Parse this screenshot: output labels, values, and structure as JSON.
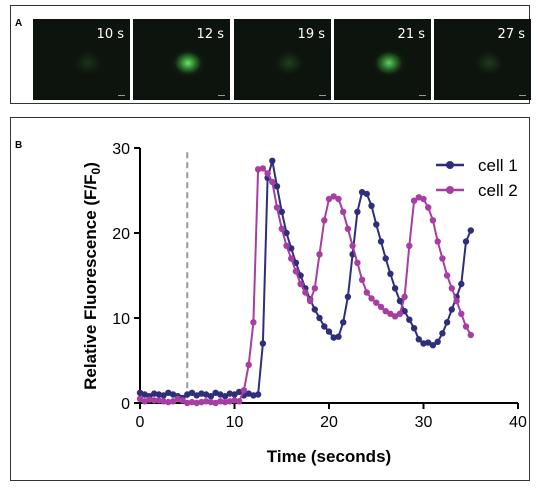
{
  "panel_a": {
    "label": "A",
    "frames": [
      {
        "time": "10 s",
        "intensity": 0.15
      },
      {
        "time": "12 s",
        "intensity": 0.95
      },
      {
        "time": "19 s",
        "intensity": 0.2
      },
      {
        "time": "21 s",
        "intensity": 0.85
      },
      {
        "time": "27 s",
        "intensity": 0.18
      }
    ]
  },
  "panel_b": {
    "label": "B"
  },
  "colors": {
    "cell1": "#2f2e7a",
    "cell2": "#a63ea3",
    "stim_line": "#999999",
    "frame_bg": "#0d130d",
    "fluor": "#4cd24c"
  },
  "chart_data": {
    "type": "line",
    "title": "",
    "xlabel": "Time (seconds)",
    "ylabel": "Relative Fluorescence (F/F",
    "ylabel_sub": "0",
    "ylabel_end": ")",
    "xlim": [
      0,
      40
    ],
    "ylim": [
      0,
      30
    ],
    "xticks": [
      0,
      10,
      20,
      30,
      40
    ],
    "yticks": [
      0,
      10,
      20,
      30
    ],
    "grid": false,
    "legend_position": "top-right",
    "stimulus_time": 5,
    "series": [
      {
        "name": "cell 1",
        "color": "#2f2e7a",
        "x": [
          0,
          0.5,
          1,
          1.5,
          2,
          2.5,
          3,
          3.5,
          4,
          4.5,
          5,
          5.5,
          6,
          6.5,
          7,
          7.5,
          8,
          8.5,
          9,
          9.5,
          10,
          10.5,
          11,
          11.5,
          12,
          12.5,
          13,
          13.5,
          14,
          14.5,
          15,
          15.5,
          16,
          16.5,
          17,
          17.5,
          18,
          18.5,
          19,
          19.5,
          20,
          20.5,
          21,
          21.5,
          22,
          22.5,
          23,
          23.5,
          24,
          24.5,
          25,
          25.5,
          26,
          26.5,
          27,
          27.5,
          28,
          28.5,
          29,
          29.5,
          30,
          30.5,
          31,
          31.5,
          32,
          32.5,
          33,
          33.5,
          34,
          34.5,
          35
        ],
        "y": [
          1.2,
          1.0,
          0.8,
          1.1,
          1.0,
          0.9,
          1.2,
          1.0,
          0.8,
          0.6,
          1.0,
          1.2,
          0.9,
          1.1,
          1.0,
          0.8,
          1.2,
          1.0,
          0.8,
          1.1,
          1.0,
          1.3,
          0.9,
          1.1,
          0.9,
          1.0,
          7.0,
          26.5,
          28.5,
          25.5,
          22.5,
          20.0,
          18.2,
          16.5,
          15.0,
          13.5,
          12.2,
          11.0,
          10.0,
          9.0,
          8.4,
          7.7,
          7.8,
          9.5,
          12.5,
          17.5,
          22.5,
          24.8,
          24.6,
          23.2,
          21.0,
          19.0,
          17.0,
          15.2,
          13.5,
          12.0,
          10.8,
          9.8,
          8.8,
          7.5,
          7.0,
          7.1,
          6.8,
          7.2,
          8.2,
          9.5,
          11.0,
          12.5,
          14.0,
          19.0,
          20.3
        ]
      },
      {
        "name": "cell 2",
        "color": "#a63ea3",
        "x": [
          0,
          0.5,
          1,
          1.5,
          2,
          2.5,
          3,
          3.5,
          4,
          4.5,
          5,
          5.5,
          6,
          6.5,
          7,
          7.5,
          8,
          8.5,
          9,
          9.5,
          10,
          10.5,
          11,
          11.5,
          12,
          12.5,
          13,
          13.5,
          14,
          14.5,
          15,
          15.5,
          16,
          16.5,
          17,
          17.5,
          18,
          18.5,
          19,
          19.5,
          20,
          20.5,
          21,
          21.5,
          22,
          22.5,
          23,
          23.5,
          24,
          24.5,
          25,
          25.5,
          26,
          26.5,
          27,
          27.5,
          28,
          28.5,
          29,
          29.5,
          30,
          30.5,
          31,
          31.5,
          32,
          32.5,
          33,
          33.5,
          34,
          34.5,
          35
        ],
        "y": [
          0.5,
          0.2,
          0.4,
          0.3,
          0.3,
          0.2,
          0.1,
          0.2,
          0.5,
          0.3,
          0.0,
          0.1,
          0.0,
          0.1,
          0.2,
          0.1,
          0.0,
          0.2,
          0.1,
          0.2,
          0.3,
          0.2,
          1.5,
          4.5,
          9.5,
          27.5,
          27.6,
          27.0,
          26.0,
          23.0,
          20.5,
          18.5,
          17.0,
          15.5,
          14.0,
          13.0,
          12.0,
          13.5,
          17.5,
          21.5,
          24.0,
          24.3,
          24.0,
          22.5,
          20.5,
          18.5,
          16.5,
          14.5,
          13.0,
          12.3,
          11.8,
          11.3,
          10.8,
          10.5,
          10.2,
          10.5,
          12.5,
          18.5,
          23.8,
          24.2,
          24.0,
          23.0,
          21.5,
          19.0,
          17.0,
          15.0,
          13.5,
          12.0,
          10.5,
          9.0,
          8.0
        ]
      }
    ]
  }
}
